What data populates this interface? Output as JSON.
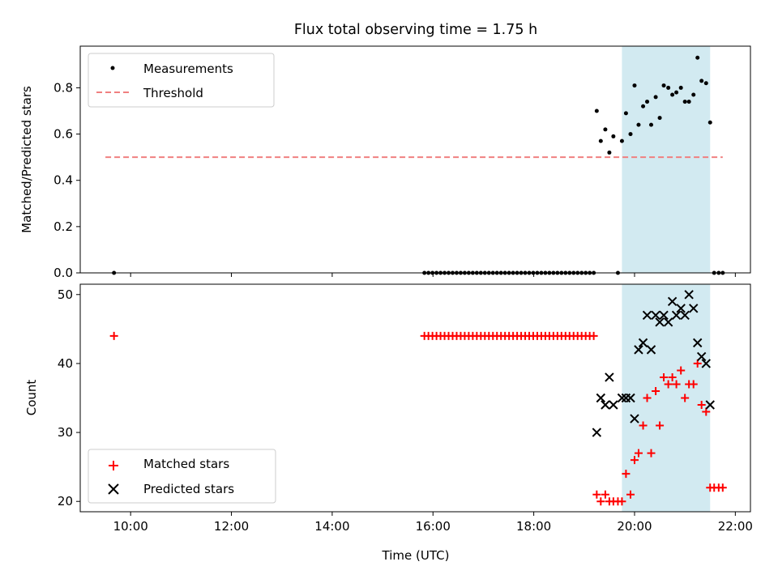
{
  "title": "Flux total observing time = 1.75 h",
  "colors": {
    "measurement": "#000000",
    "threshold": "#f08080",
    "window": "#add8e6",
    "matched": "#ff0000",
    "predicted": "#000000"
  },
  "chart_data": [
    {
      "type": "scatter",
      "ylabel": "Matched/Predicted stars",
      "xlim": [
        9.0,
        22.3
      ],
      "ylim": [
        0,
        0.98
      ],
      "yticks": [
        0.0,
        0.2,
        0.4,
        0.6,
        0.8
      ],
      "ytick_labels": [
        "0.0",
        "0.2",
        "0.4",
        "0.6",
        "0.8"
      ],
      "shaded_span": [
        19.75,
        21.5
      ],
      "legend": {
        "position": "top-left",
        "entries": [
          "Measurements",
          "Threshold"
        ]
      },
      "threshold": {
        "name": "Threshold",
        "y": 0.5,
        "x": [
          9.5,
          21.75
        ]
      },
      "series": [
        {
          "name": "Measurements",
          "marker": "dot",
          "x": [
            9.67,
            15.83,
            15.91,
            15.99,
            16.07,
            16.15,
            16.23,
            16.31,
            16.39,
            16.47,
            16.55,
            16.63,
            16.71,
            16.79,
            16.87,
            16.95,
            17.03,
            17.11,
            17.19,
            17.27,
            17.35,
            17.43,
            17.51,
            17.59,
            17.67,
            17.75,
            17.83,
            17.91,
            17.99,
            18.07,
            18.15,
            18.23,
            18.31,
            18.39,
            18.47,
            18.55,
            18.63,
            18.71,
            18.79,
            18.87,
            18.95,
            19.03,
            19.11,
            19.19,
            19.25,
            19.33,
            19.42,
            19.5,
            19.58,
            19.67,
            19.75,
            19.83,
            19.92,
            20.0,
            20.08,
            20.17,
            20.25,
            20.33,
            20.42,
            20.5,
            20.58,
            20.67,
            20.75,
            20.83,
            20.92,
            21.0,
            21.08,
            21.17,
            21.25,
            21.33,
            21.42,
            21.5,
            21.58,
            21.67,
            21.75
          ],
          "y": [
            0.0,
            0.0,
            0.0,
            0.0,
            0.0,
            0.0,
            0.0,
            0.0,
            0.0,
            0.0,
            0.0,
            0.0,
            0.0,
            0.0,
            0.0,
            0.0,
            0.0,
            0.0,
            0.0,
            0.0,
            0.0,
            0.0,
            0.0,
            0.0,
            0.0,
            0.0,
            0.0,
            0.0,
            0.0,
            0.0,
            0.0,
            0.0,
            0.0,
            0.0,
            0.0,
            0.0,
            0.0,
            0.0,
            0.0,
            0.0,
            0.0,
            0.0,
            0.0,
            0.0,
            0.7,
            0.57,
            0.62,
            0.52,
            0.59,
            0.0,
            0.57,
            0.69,
            0.6,
            0.81,
            0.64,
            0.72,
            0.74,
            0.64,
            0.76,
            0.67,
            0.81,
            0.8,
            0.77,
            0.78,
            0.8,
            0.74,
            0.74,
            0.77,
            0.93,
            0.83,
            0.82,
            0.65,
            0.0,
            0.0,
            0.0
          ]
        }
      ]
    },
    {
      "type": "scatter",
      "xlabel": "Time (UTC)",
      "ylabel": "Count",
      "xlim": [
        9.0,
        22.3
      ],
      "ylim": [
        18.5,
        51.5
      ],
      "xticks": [
        10,
        12,
        14,
        16,
        18,
        20,
        22
      ],
      "xtick_labels": [
        "10:00",
        "12:00",
        "14:00",
        "16:00",
        "18:00",
        "20:00",
        "22:00"
      ],
      "yticks": [
        20,
        30,
        40,
        50
      ],
      "ytick_labels": [
        "20",
        "30",
        "40",
        "50"
      ],
      "shaded_span": [
        19.75,
        21.5
      ],
      "legend": {
        "position": "bottom-left",
        "entries": [
          "Matched stars",
          "Predicted stars"
        ]
      },
      "series": [
        {
          "name": "Matched stars",
          "marker": "plus",
          "x": [
            9.67,
            15.83,
            15.91,
            15.99,
            16.07,
            16.15,
            16.23,
            16.31,
            16.39,
            16.47,
            16.55,
            16.63,
            16.71,
            16.79,
            16.87,
            16.95,
            17.03,
            17.11,
            17.19,
            17.27,
            17.35,
            17.43,
            17.51,
            17.59,
            17.67,
            17.75,
            17.83,
            17.91,
            17.99,
            18.07,
            18.15,
            18.23,
            18.31,
            18.39,
            18.47,
            18.55,
            18.63,
            18.71,
            18.79,
            18.87,
            18.95,
            19.03,
            19.11,
            19.19,
            19.25,
            19.33,
            19.42,
            19.5,
            19.58,
            19.67,
            19.75,
            19.83,
            19.92,
            20.0,
            20.08,
            20.17,
            20.25,
            20.33,
            20.42,
            20.5,
            20.58,
            20.67,
            20.75,
            20.83,
            20.92,
            21.0,
            21.08,
            21.17,
            21.25,
            21.33,
            21.42,
            21.5,
            21.58,
            21.67,
            21.75
          ],
          "y": [
            44,
            44,
            44,
            44,
            44,
            44,
            44,
            44,
            44,
            44,
            44,
            44,
            44,
            44,
            44,
            44,
            44,
            44,
            44,
            44,
            44,
            44,
            44,
            44,
            44,
            44,
            44,
            44,
            44,
            44,
            44,
            44,
            44,
            44,
            44,
            44,
            44,
            44,
            44,
            44,
            44,
            44,
            44,
            44,
            21,
            20,
            21,
            20,
            20,
            20,
            20,
            24,
            21,
            26,
            27,
            31,
            35,
            27,
            36,
            31,
            38,
            37,
            38,
            37,
            39,
            35,
            37,
            37,
            40,
            34,
            33,
            22,
            22,
            22,
            22
          ]
        },
        {
          "name": "Predicted stars",
          "marker": "x",
          "x": [
            19.25,
            19.33,
            19.42,
            19.5,
            19.58,
            19.75,
            19.83,
            19.92,
            20.0,
            20.08,
            20.17,
            20.25,
            20.33,
            20.42,
            20.5,
            20.58,
            20.67,
            20.75,
            20.83,
            20.92,
            21.0,
            21.08,
            21.17,
            21.25,
            21.33,
            21.42,
            21.5
          ],
          "y": [
            30,
            35,
            34,
            38,
            34,
            35,
            35,
            35,
            32,
            42,
            43,
            47,
            42,
            47,
            46,
            47,
            46,
            49,
            47,
            48,
            47,
            50,
            48,
            43,
            41,
            40,
            34
          ]
        }
      ]
    }
  ]
}
